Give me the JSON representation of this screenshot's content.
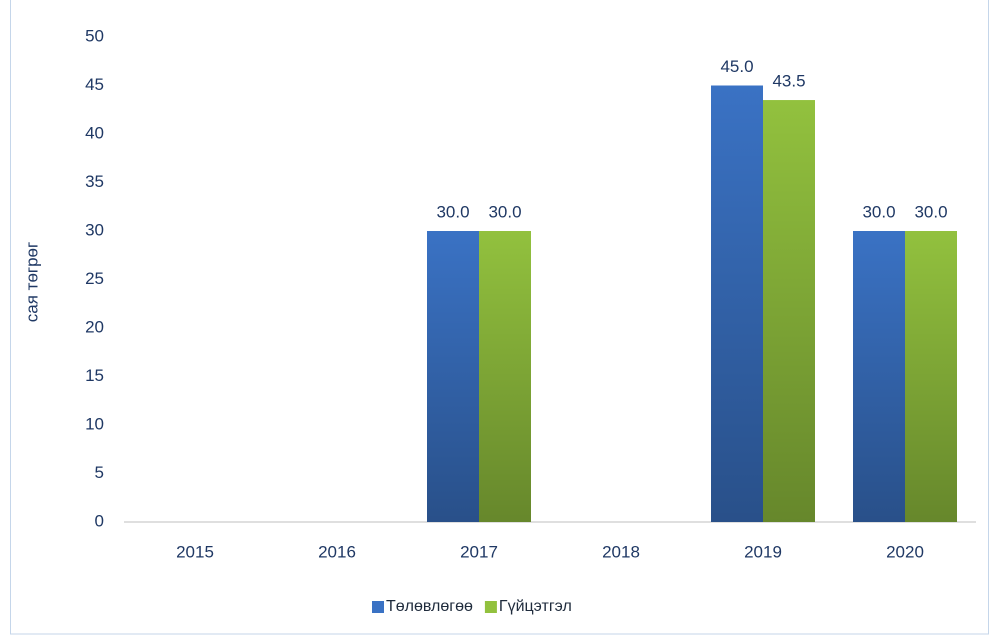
{
  "chart_data": {
    "type": "bar",
    "y_label": "сая төгрөг",
    "categories": [
      "2015",
      "2016",
      "2017",
      "2018",
      "2019",
      "2020"
    ],
    "series": [
      {
        "name": "Төлөвлөгөө",
        "color": "#3a72c4",
        "values": [
          null,
          null,
          30,
          null,
          45,
          30
        ],
        "value_labels": [
          null,
          null,
          "30.0",
          null,
          "45.0",
          "30.0"
        ]
      },
      {
        "name": "Гүйцэтгэл",
        "color": "#92c13e",
        "values": [
          null,
          null,
          30,
          null,
          43.5,
          30
        ],
        "value_labels": [
          null,
          null,
          "30.0",
          null,
          "43.5",
          "30.0"
        ]
      }
    ],
    "ylim": [
      0,
      50
    ],
    "yticks": [
      0,
      5,
      10,
      15,
      20,
      25,
      30,
      35,
      40,
      45,
      50
    ],
    "grid": false,
    "legend": "bottom"
  }
}
